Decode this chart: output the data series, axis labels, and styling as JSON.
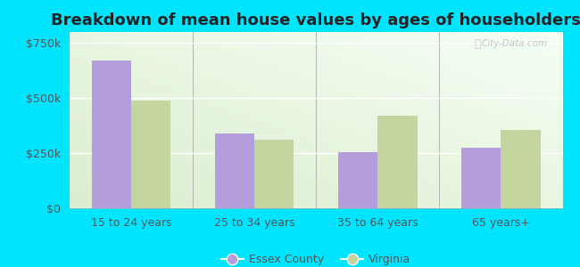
{
  "title": "Breakdown of mean house values by ages of householders",
  "categories": [
    "15 to 24 years",
    "25 to 34 years",
    "35 to 64 years",
    "65 years+"
  ],
  "essex_values": [
    670000,
    340000,
    255000,
    275000
  ],
  "virginia_values": [
    490000,
    310000,
    420000,
    355000
  ],
  "essex_color": "#b39ddb",
  "virginia_color": "#c5d5a0",
  "outer_background": "#00e5ff",
  "ylim": [
    0,
    800000
  ],
  "yticks": [
    0,
    250000,
    500000,
    750000
  ],
  "ytick_labels": [
    "$0",
    "$250k",
    "$500k",
    "$750k"
  ],
  "bar_width": 0.32,
  "legend_labels": [
    "Essex County",
    "Virginia"
  ],
  "watermark": "City-Data.com",
  "title_fontsize": 13,
  "tick_fontsize": 9,
  "legend_fontsize": 9,
  "axis_text_color": "#555555"
}
